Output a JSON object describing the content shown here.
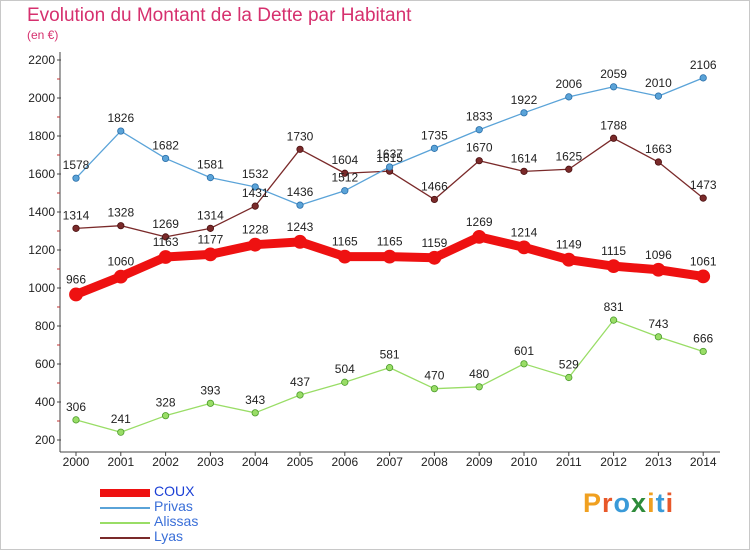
{
  "title": "Evolution du Montant de la Dette par Habitant",
  "subtitle": "(en €)",
  "brand": {
    "text": "Proxiti",
    "colors": [
      "#f0a020",
      "#e8582a",
      "#3a9ad8",
      "#2e8b3a",
      "#f0a020",
      "#3a9ad8",
      "#e8582a"
    ]
  },
  "chart_data": {
    "type": "line",
    "title": "Evolution du Montant de la Dette par Habitant",
    "subtitle": "(en €)",
    "xlabel": "",
    "ylabel": "",
    "ylim": [
      200,
      2200
    ],
    "yticks": [
      200,
      400,
      600,
      800,
      1000,
      1200,
      1400,
      1600,
      1800,
      2000,
      2200
    ],
    "grid": false,
    "legend_position": "bottom-left",
    "x": [
      "2000",
      "2001",
      "2002",
      "2003",
      "2004",
      "2005",
      "2006",
      "2007",
      "2008",
      "2009",
      "2010",
      "2011",
      "2012",
      "2013",
      "2014"
    ],
    "series": [
      {
        "name": "COUX",
        "color": "#ee1111",
        "values": [
          966,
          1060,
          1163,
          1177,
          1228,
          1243,
          1165,
          1165,
          1159,
          1269,
          1214,
          1149,
          1115,
          1096,
          1061
        ]
      },
      {
        "name": "Privas",
        "color": "#5aa3d8",
        "values": [
          1578,
          1826,
          1682,
          1581,
          1532,
          1436,
          1512,
          1637,
          1735,
          1833,
          1922,
          2006,
          2059,
          2010,
          2106
        ]
      },
      {
        "name": "Alissas",
        "color": "#99dd66",
        "values": [
          306,
          241,
          328,
          393,
          343,
          437,
          504,
          581,
          470,
          480,
          601,
          529,
          831,
          743,
          666
        ]
      },
      {
        "name": "Lyas",
        "color": "#7a2a2a",
        "values": [
          1314,
          1328,
          1269,
          1314,
          1431,
          1730,
          1604,
          1615,
          1466,
          1670,
          1614,
          1625,
          1788,
          1663,
          1473
        ]
      }
    ]
  }
}
